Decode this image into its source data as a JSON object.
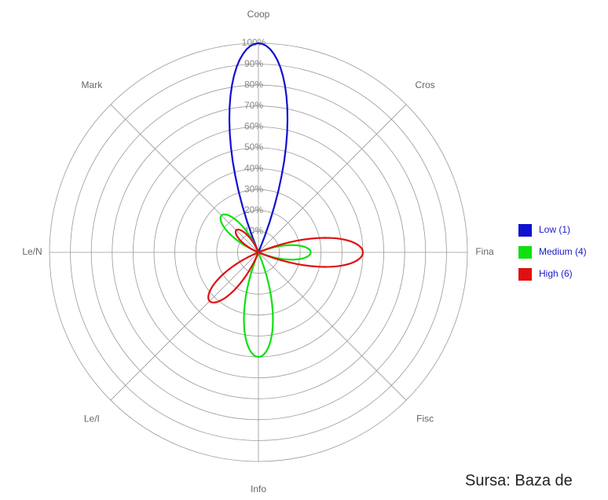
{
  "chart_data": {
    "type": "polar-rose",
    "categories": [
      "Coop",
      "Cros",
      "Fina",
      "Fisc",
      "Info",
      "Le/I",
      "Le/N",
      "Mark"
    ],
    "series": [
      {
        "name": "Low (1)",
        "color": "#1010d0",
        "values": [
          100,
          0,
          0,
          0,
          0,
          0,
          0,
          0
        ]
      },
      {
        "name": "Medium (4)",
        "color": "#10e010",
        "values": [
          0,
          0,
          25,
          0,
          50,
          0,
          0,
          25
        ]
      },
      {
        "name": "High (6)",
        "color": "#e01010",
        "values": [
          0,
          0,
          50,
          0,
          0,
          33,
          0,
          15
        ]
      }
    ],
    "ylim": [
      0,
      100
    ],
    "yticks": [
      {
        "value": 10,
        "label": "10%"
      },
      {
        "value": 20,
        "label": "20%"
      },
      {
        "value": 30,
        "label": "30%"
      },
      {
        "value": 40,
        "label": "40%"
      },
      {
        "value": 50,
        "label": "50%"
      },
      {
        "value": 60,
        "label": "60%"
      },
      {
        "value": 70,
        "label": "70%"
      },
      {
        "value": 80,
        "label": "80%"
      },
      {
        "value": 90,
        "label": "90%"
      },
      {
        "value": 100,
        "label": "100%"
      }
    ],
    "source": "Sursa: Baza de"
  }
}
